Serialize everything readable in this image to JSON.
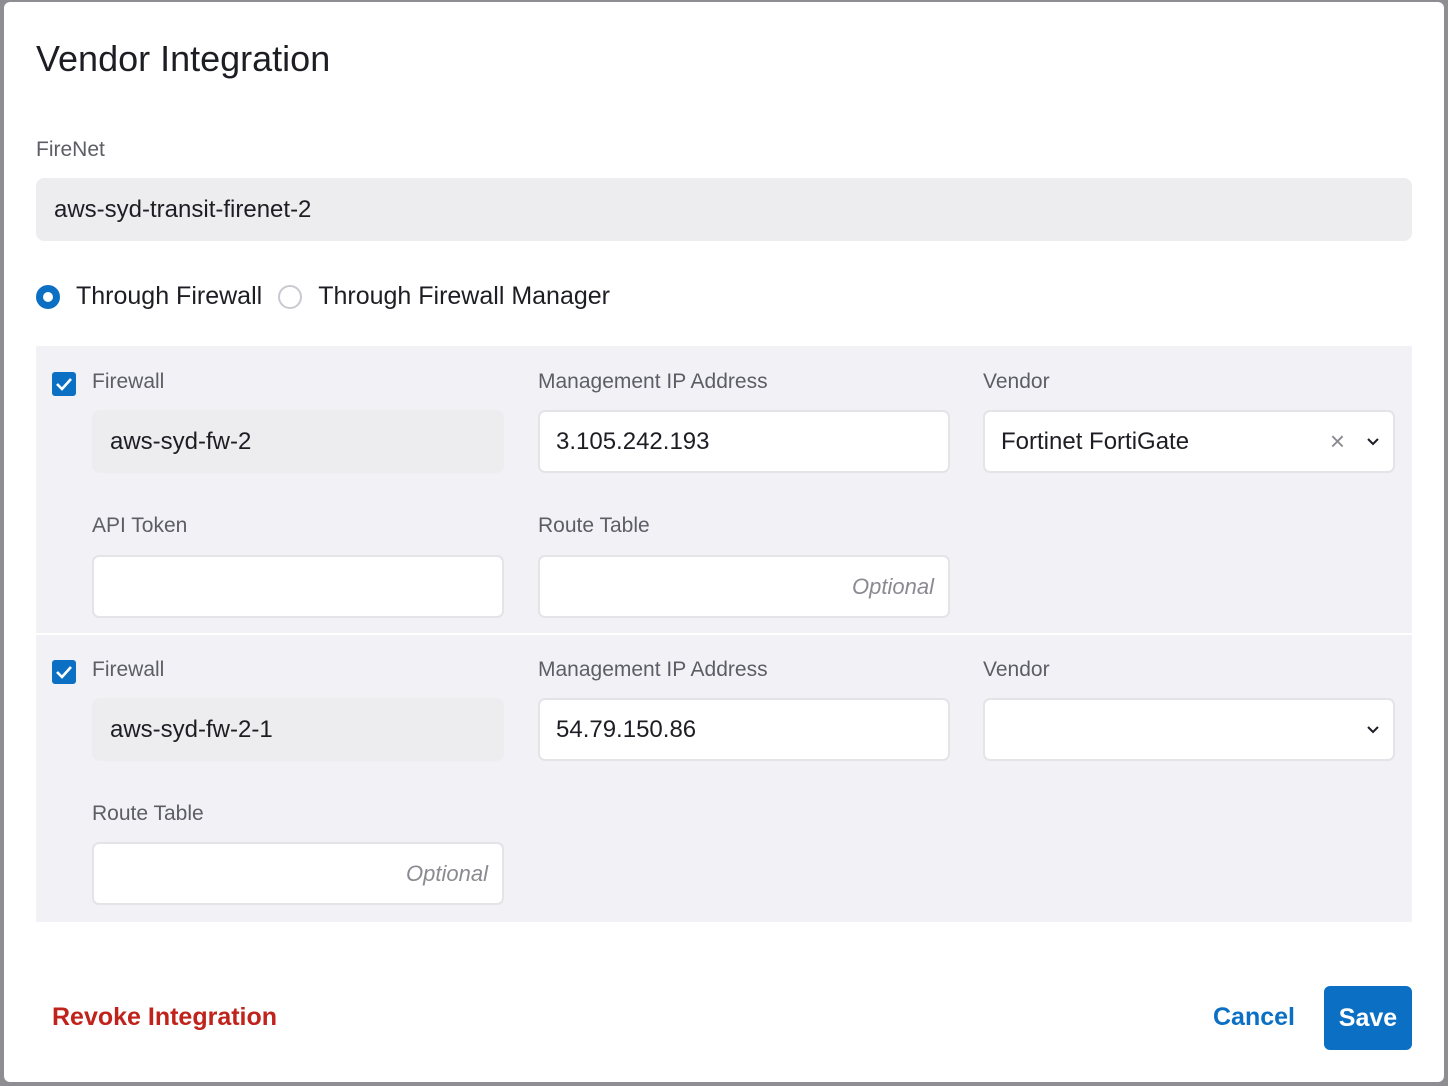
{
  "modal": {
    "title": "Vendor Integration",
    "firenet_label": "FireNet",
    "firenet_value": "aws-syd-transit-firenet-2",
    "radio_options": [
      {
        "label": "Through Firewall",
        "selected": true
      },
      {
        "label": "Through Firewall Manager",
        "selected": false
      }
    ],
    "firewalls": [
      {
        "checked": true,
        "firewall_label": "Firewall",
        "firewall_value": "aws-syd-fw-2",
        "mgmt_label": "Management IP Address",
        "mgmt_value": "3.105.242.193",
        "vendor_label": "Vendor",
        "vendor_value": "Fortinet FortiGate",
        "api_token_label": "API Token",
        "api_token_value": "",
        "route_table_label": "Route Table",
        "route_table_placeholder": "Optional"
      },
      {
        "checked": true,
        "firewall_label": "Firewall",
        "firewall_value": "aws-syd-fw-2-1",
        "mgmt_label": "Management IP Address",
        "mgmt_value": "54.79.150.86",
        "vendor_label": "Vendor",
        "vendor_value": "",
        "route_table_label": "Route Table",
        "route_table_placeholder": "Optional"
      }
    ],
    "footer": {
      "revoke_label": "Revoke Integration",
      "cancel_label": "Cancel",
      "save_label": "Save"
    }
  },
  "colors": {
    "accent": "#0b70c4",
    "danger": "#c0231c",
    "panel": "#f2f2f6"
  }
}
